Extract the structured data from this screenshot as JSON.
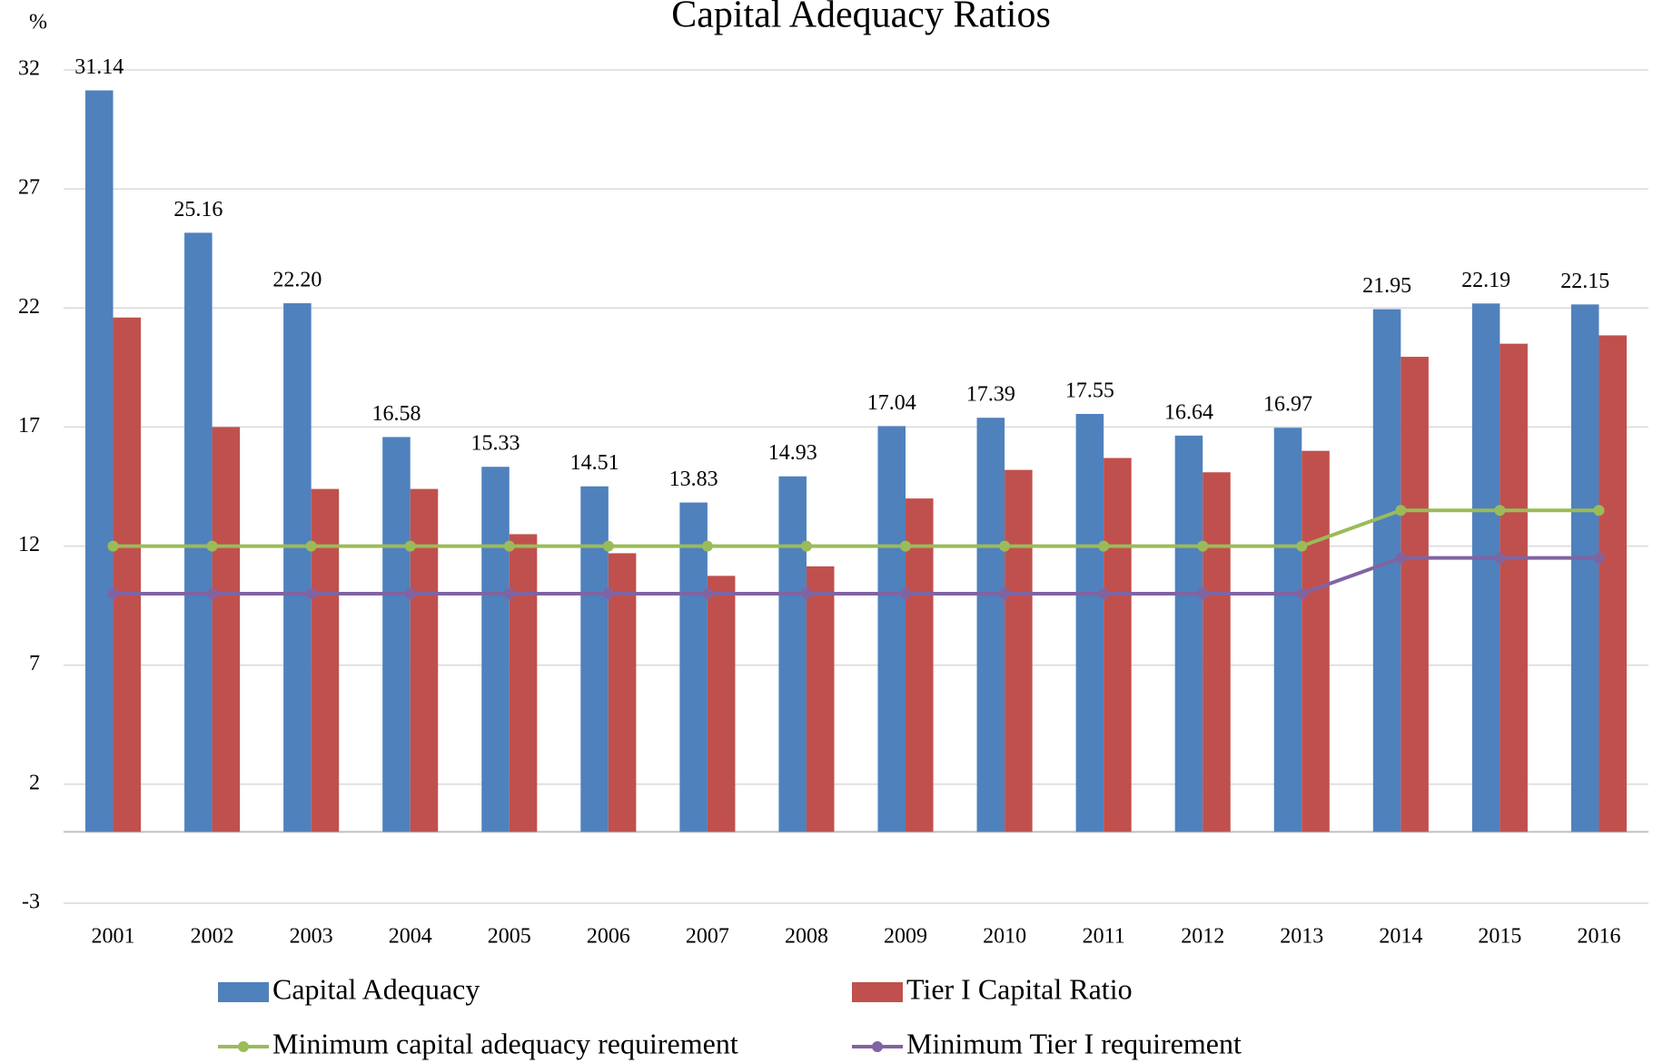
{
  "chart_data": {
    "type": "bar",
    "title": "Capital Adequacy Ratios",
    "ylabel": "%",
    "categories": [
      "2001",
      "2002",
      "2003",
      "2004",
      "2005",
      "2006",
      "2007",
      "2008",
      "2009",
      "2010",
      "2011",
      "2012",
      "2013",
      "2014",
      "2015",
      "2016"
    ],
    "series": [
      {
        "name": "Capital Adequacy",
        "type": "bar",
        "color": "#4f81bd",
        "values": [
          31.14,
          25.16,
          22.2,
          16.58,
          15.33,
          14.51,
          13.83,
          14.93,
          17.04,
          17.39,
          17.55,
          16.64,
          16.97,
          21.95,
          22.19,
          22.15
        ],
        "value_labels": [
          "31.14",
          "25.16",
          "22.20",
          "16.58",
          "15.33",
          "14.51",
          "13.83",
          "14.93",
          "17.04",
          "17.39",
          "17.55",
          "16.64",
          "16.97",
          "21.95",
          "22.19",
          "22.15"
        ]
      },
      {
        "name": "Tier I Capital Ratio",
        "type": "bar",
        "color": "#c0504d",
        "values": [
          21.6,
          17.0,
          14.4,
          14.4,
          12.5,
          11.7,
          10.75,
          11.15,
          14.0,
          15.2,
          15.7,
          15.1,
          16.0,
          19.95,
          20.5,
          20.85
        ]
      },
      {
        "name": "Minimum capital adequacy requirement",
        "type": "line",
        "color": "#9bbb59",
        "values": [
          12,
          12,
          12,
          12,
          12,
          12,
          12,
          12,
          12,
          12,
          12,
          12,
          12,
          13.5,
          13.5,
          13.5
        ]
      },
      {
        "name": "Minimum Tier I requirement",
        "type": "line",
        "color": "#8064a2",
        "values": [
          10,
          10,
          10,
          10,
          10,
          10,
          10,
          10,
          10,
          10,
          10,
          10,
          10,
          11.5,
          11.5,
          11.5
        ]
      }
    ],
    "ylim": [
      -3,
      32
    ],
    "yticks": [
      -3,
      2,
      7,
      12,
      17,
      22,
      27,
      32
    ],
    "grid": true
  }
}
